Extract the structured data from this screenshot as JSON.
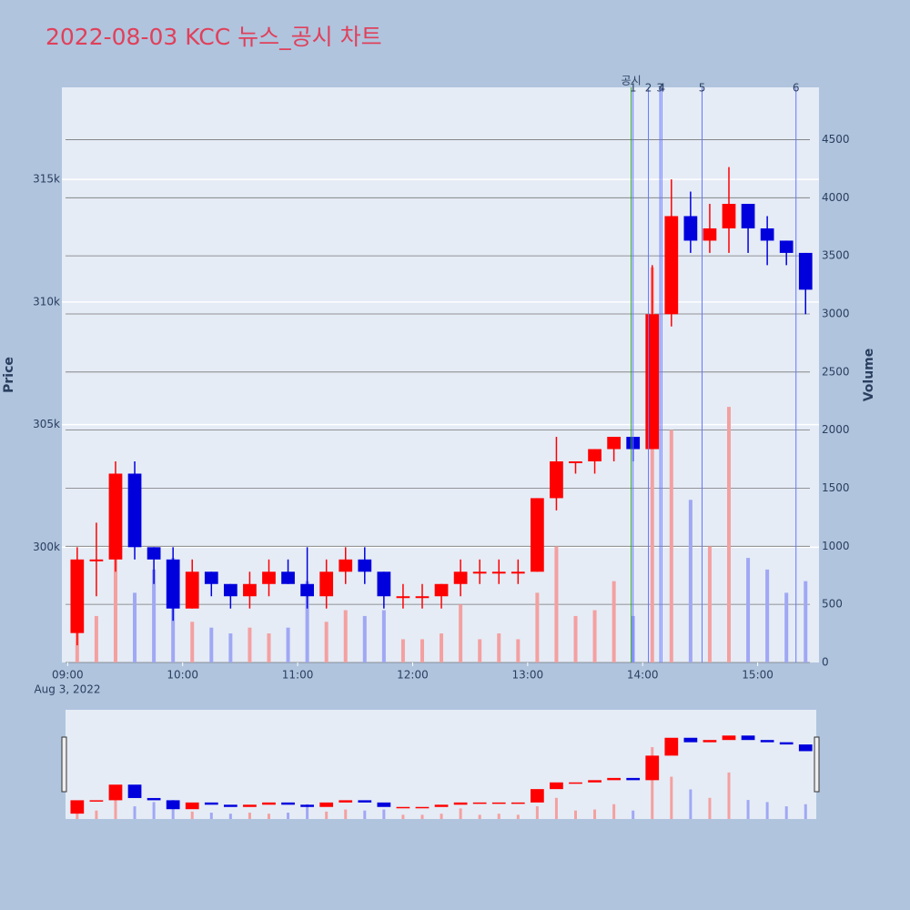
{
  "chart_data": {
    "type": "candlestick",
    "title": "2022-08-03 KCC 뉴스_공시 차트",
    "x_sublabel": "Aug 3, 2022",
    "ylabel": "Price",
    "y2label": "Volume",
    "increasing_color": "#ff0000",
    "decreasing_color": "#0000dd",
    "x": [
      "09:00",
      "09:10",
      "09:20",
      "09:30",
      "09:40",
      "09:50",
      "10:00",
      "10:10",
      "10:20",
      "10:30",
      "10:40",
      "10:50",
      "11:00",
      "11:10",
      "11:20",
      "11:30",
      "11:40",
      "11:50",
      "12:00",
      "12:10",
      "12:20",
      "12:30",
      "12:40",
      "12:50",
      "13:00",
      "13:10",
      "13:20",
      "13:30",
      "13:40",
      "13:50",
      "14:00",
      "14:10",
      "14:20",
      "14:30",
      "14:40",
      "14:50",
      "15:00",
      "15:10",
      "15:20"
    ],
    "open": [
      296500,
      299500,
      299500,
      303000,
      300000,
      299500,
      297500,
      299000,
      298500,
      298000,
      298500,
      299000,
      298500,
      298000,
      299000,
      299500,
      299000,
      298000,
      298000,
      298000,
      298500,
      299000,
      299000,
      299000,
      299000,
      302000,
      303500,
      303500,
      304000,
      304500,
      304000,
      309500,
      313500,
      312500,
      313000,
      314000,
      313000,
      312500,
      312000
    ],
    "high": [
      300000,
      301000,
      303500,
      303500,
      300000,
      300000,
      299500,
      299000,
      298500,
      299000,
      299500,
      299500,
      300000,
      299500,
      300000,
      300000,
      299000,
      298500,
      298500,
      298500,
      299500,
      299500,
      299500,
      299500,
      302000,
      304500,
      303500,
      304000,
      304500,
      304500,
      311500,
      315000,
      314500,
      314000,
      315500,
      314000,
      313500,
      312500,
      312000
    ],
    "low": [
      296000,
      298000,
      299000,
      299500,
      298500,
      297000,
      297500,
      298000,
      297500,
      297500,
      298000,
      298500,
      297500,
      297500,
      298500,
      298500,
      297500,
      297500,
      297500,
      297500,
      298000,
      298500,
      298500,
      298500,
      299000,
      301500,
      303000,
      303000,
      303500,
      303500,
      304000,
      309000,
      312000,
      312000,
      312000,
      312000,
      311500,
      311500,
      309500
    ],
    "close": [
      299500,
      299500,
      303000,
      300000,
      299500,
      297500,
      299000,
      298500,
      298000,
      298500,
      299000,
      298500,
      298000,
      299000,
      299500,
      299000,
      298000,
      298000,
      298000,
      298500,
      299000,
      299000,
      299000,
      299000,
      302000,
      303500,
      303500,
      304000,
      304500,
      304000,
      309500,
      313500,
      312500,
      313000,
      314000,
      313000,
      312500,
      312000,
      310500
    ],
    "volume": [
      700,
      400,
      900,
      600,
      800,
      900,
      350,
      300,
      250,
      300,
      250,
      300,
      700,
      350,
      450,
      400,
      450,
      200,
      200,
      250,
      500,
      200,
      250,
      200,
      600,
      1000,
      400,
      450,
      700,
      400,
      3400,
      2000,
      1400,
      1000,
      2200,
      900,
      800,
      600,
      700
    ],
    "xlim": [
      "08:57",
      "15:32"
    ],
    "xticks": [
      "09:00",
      "10:00",
      "11:00",
      "12:00",
      "13:00",
      "14:00",
      "15:00"
    ],
    "ylim": [
      295300,
      318750
    ],
    "yticks": [
      {
        "value": 300000,
        "label": "300k"
      },
      {
        "value": 305000,
        "label": "305k"
      },
      {
        "value": 310000,
        "label": "310k"
      },
      {
        "value": 315000,
        "label": "315k"
      }
    ],
    "y2lim": [
      0,
      4950
    ],
    "y2ticks": [
      0,
      500,
      1000,
      1500,
      2000,
      2500,
      3000,
      3500,
      4000,
      4500
    ],
    "events": [
      {
        "time": "13:54",
        "label": "공시",
        "color": "#2ca02c"
      },
      {
        "time": "13:55",
        "label": "1",
        "color": "#6677ff"
      },
      {
        "time": "14:03",
        "label": "2",
        "color": "#6677ff"
      },
      {
        "time": "14:09",
        "label": "3",
        "color": "#6677ff"
      },
      {
        "time": "14:10",
        "label": "4",
        "color": "#6677ff"
      },
      {
        "time": "14:31",
        "label": "5",
        "color": "#6677ff"
      },
      {
        "time": "15:20",
        "label": "6",
        "color": "#6677ff"
      }
    ]
  }
}
